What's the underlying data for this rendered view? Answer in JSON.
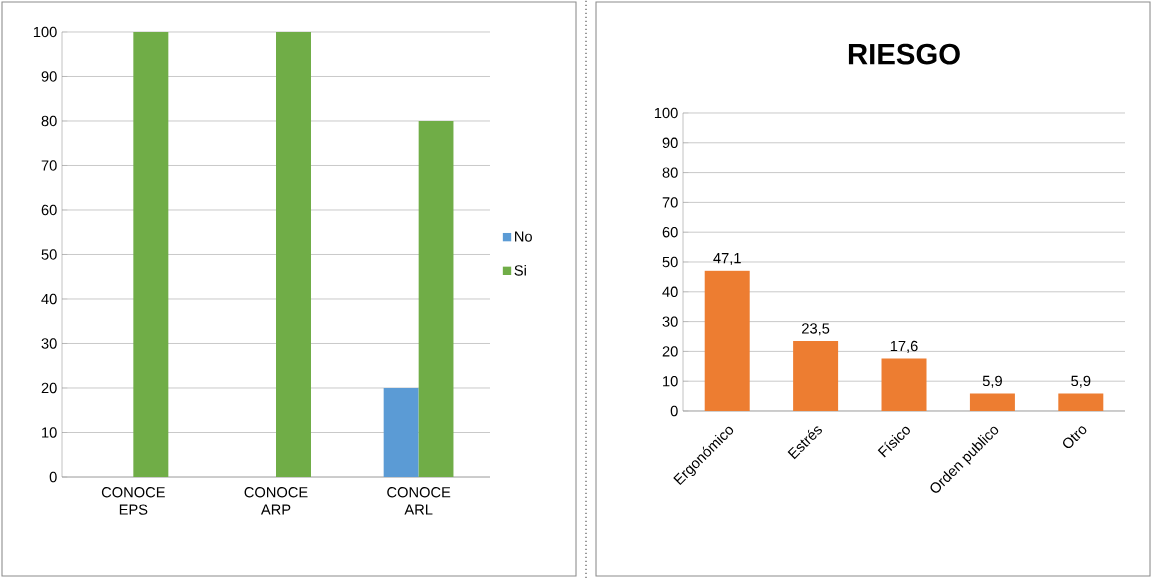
{
  "chart_data": [
    {
      "type": "bar",
      "categories": [
        "CONOCE EPS",
        "CONOCE ARP",
        "CONOCE ARL"
      ],
      "series": [
        {
          "name": "No",
          "color": "#5b9bd5",
          "values": [
            0,
            0,
            20
          ]
        },
        {
          "name": "Si",
          "color": "#70ad47",
          "values": [
            100,
            100,
            80
          ]
        }
      ],
      "ylim": [
        0,
        100
      ],
      "yticks": [
        0,
        10,
        20,
        30,
        40,
        50,
        60,
        70,
        80,
        90,
        100
      ],
      "grid": "y",
      "legend": "right"
    },
    {
      "type": "bar",
      "title": "RIESGO",
      "categories": [
        "Ergonómico",
        "Estrés",
        "Físico",
        "Orden publico",
        "Otro"
      ],
      "values": [
        47.1,
        23.5,
        17.6,
        5.9,
        5.9
      ],
      "color": "#ed7d31",
      "value_labels": [
        "47,1",
        "23,5",
        "17,6",
        "5,9",
        "5,9"
      ],
      "ylim": [
        0,
        100
      ],
      "yticks": [
        0,
        10,
        20,
        30,
        40,
        50,
        60,
        70,
        80,
        90,
        100
      ],
      "grid": "y"
    }
  ]
}
